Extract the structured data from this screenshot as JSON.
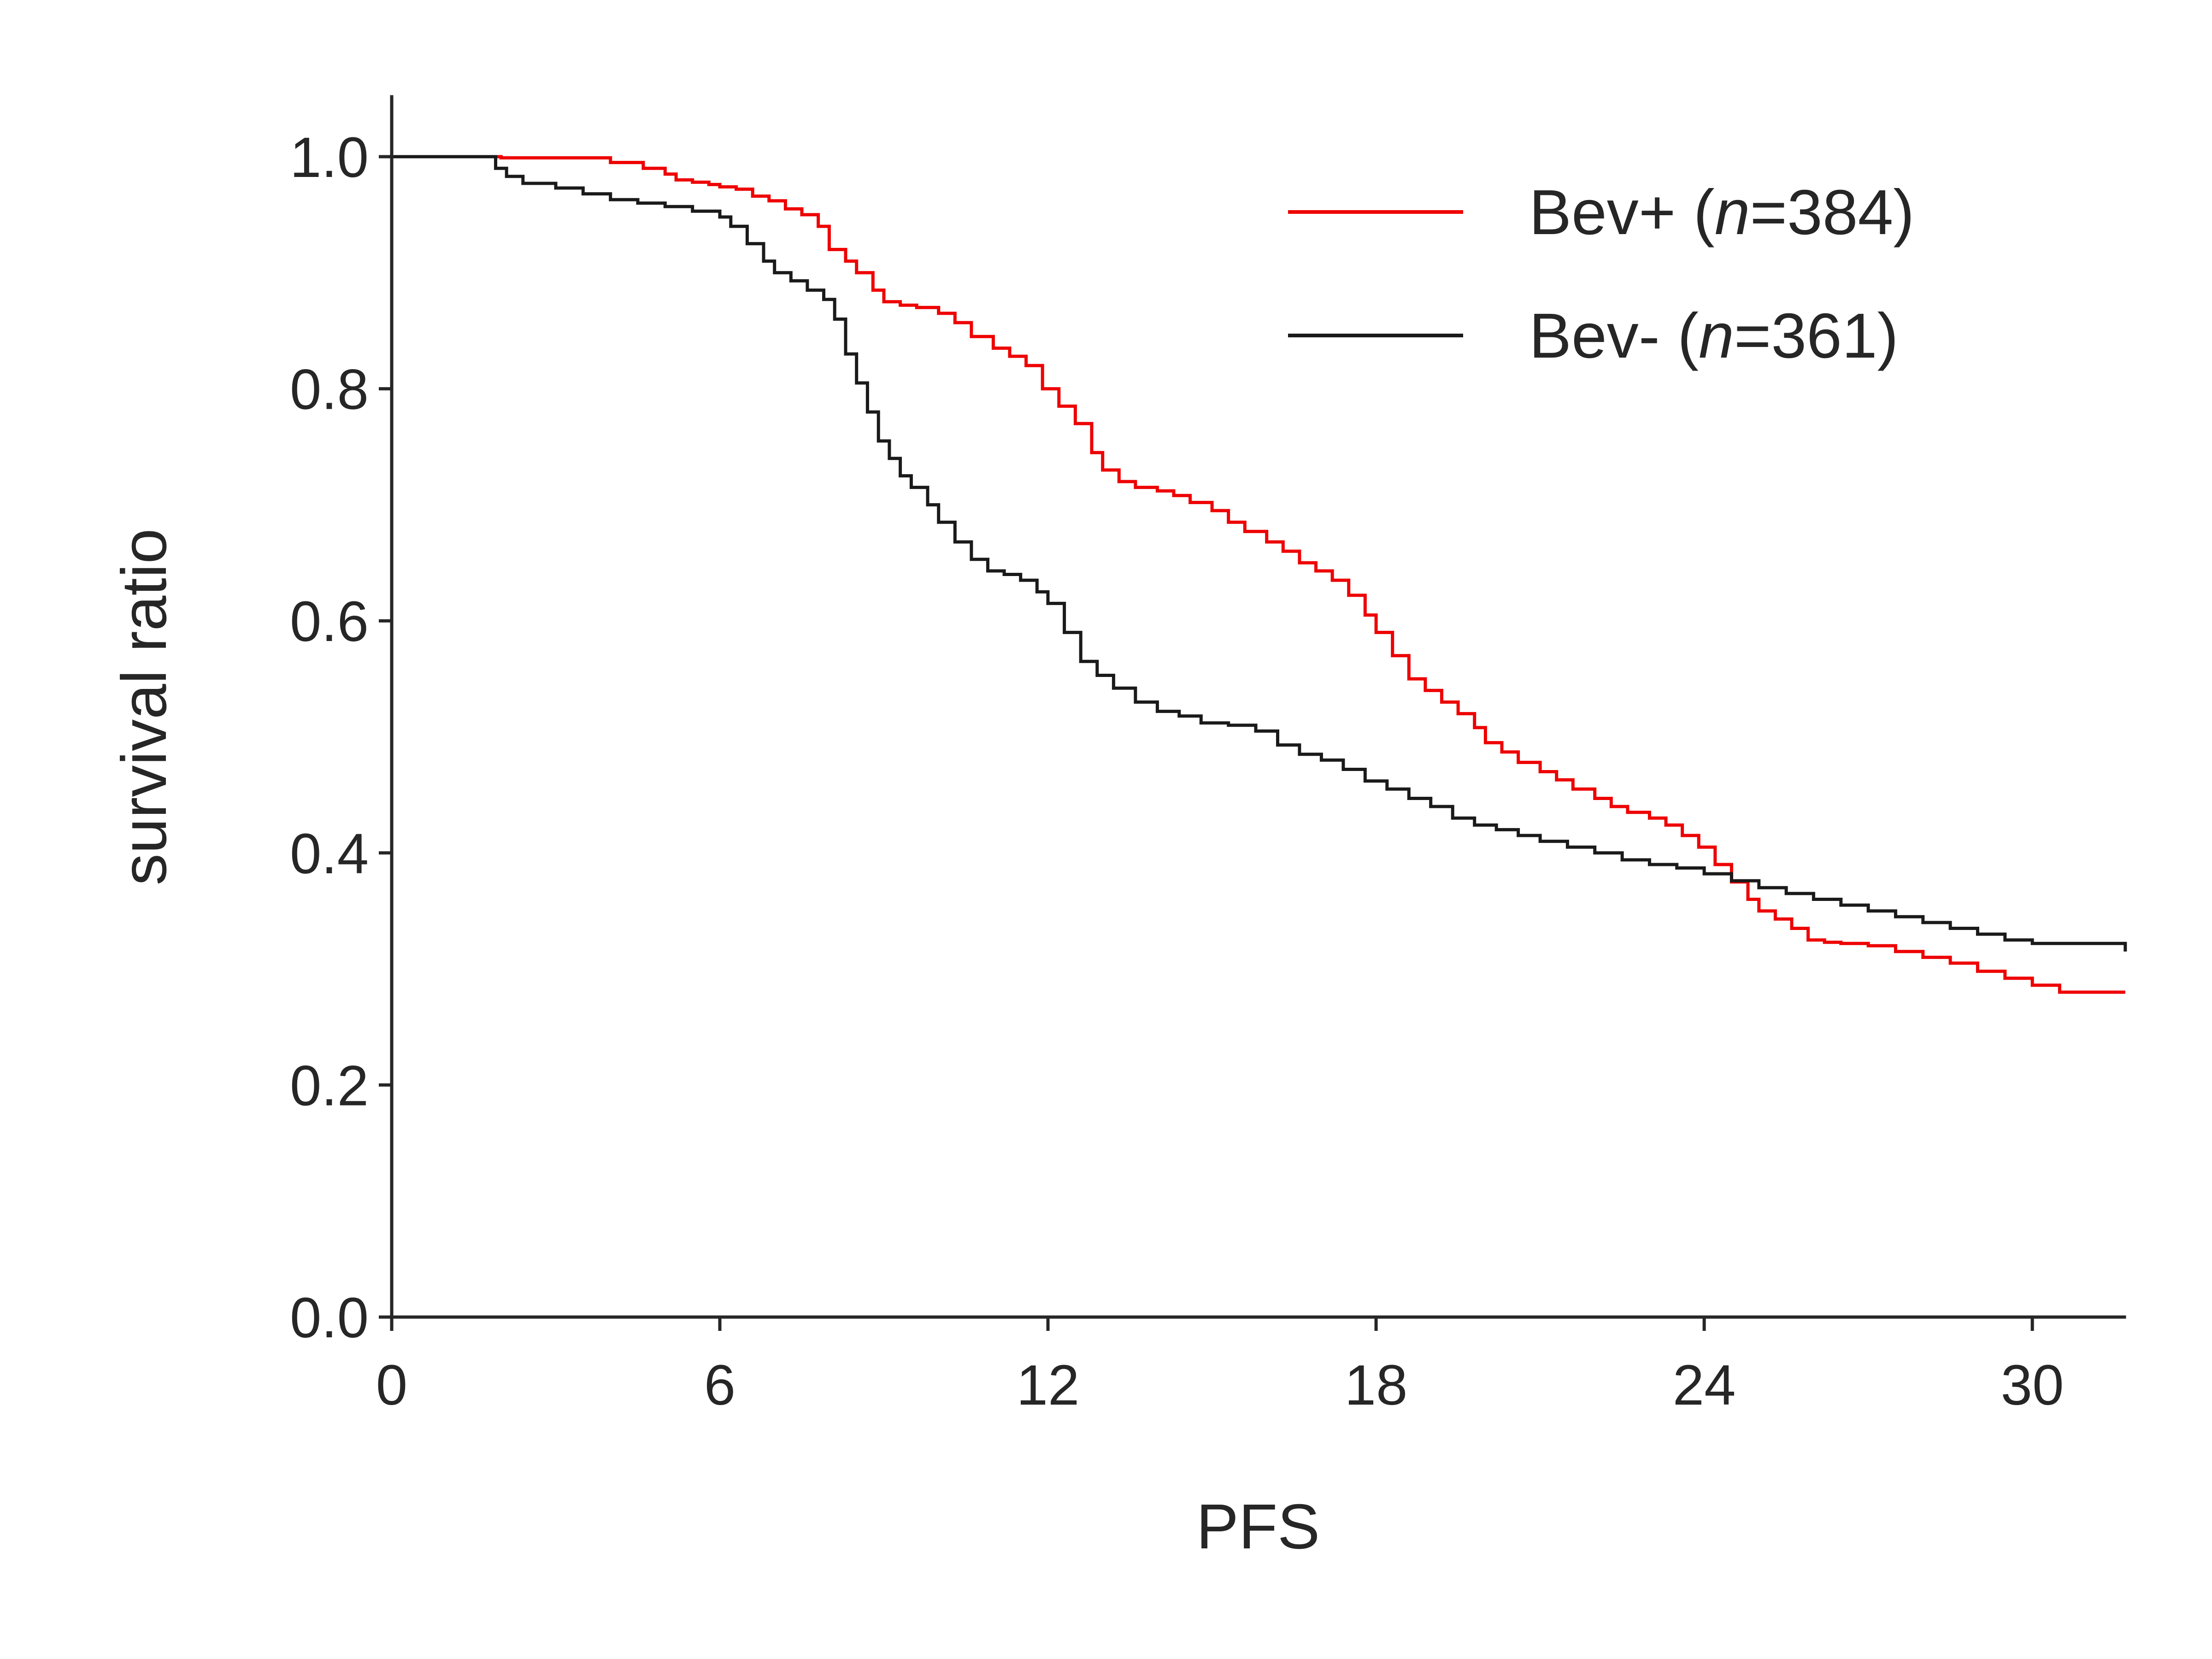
{
  "chart_data": {
    "type": "line",
    "subtype": "kaplan-meier-step",
    "title": "",
    "xlabel": "PFS",
    "ylabel": "survival ratio",
    "xlim": [
      0,
      31.7
    ],
    "ylim": [
      0,
      1.05
    ],
    "xticks": [
      0,
      6,
      12,
      18,
      24,
      30
    ],
    "xtick_labels": [
      "0",
      "6",
      "12",
      "18",
      "24",
      "30"
    ],
    "yticks": [
      0.0,
      0.2,
      0.4,
      0.6,
      0.8,
      1.0
    ],
    "ytick_labels": [
      "0.0",
      "0.2",
      "0.4",
      "0.6",
      "0.8",
      "1.0"
    ],
    "grid": false,
    "legend_position": "top-right",
    "series": [
      {
        "name": "Bev+ (n=384)",
        "legend_prefix": "Bev+ (",
        "legend_italic": "n",
        "legend_suffix": "=384)",
        "color": "#ee0000",
        "x": [
          0,
          2.0,
          4.0,
          4.6,
          5.0,
          5.2,
          5.5,
          5.8,
          6.0,
          6.3,
          6.6,
          6.9,
          7.2,
          7.5,
          7.8,
          8.0,
          8.3,
          8.5,
          8.8,
          9.0,
          9.3,
          9.6,
          10.0,
          10.3,
          10.6,
          11.0,
          11.3,
          11.6,
          11.9,
          12.2,
          12.5,
          12.8,
          13.0,
          13.3,
          13.6,
          14.0,
          14.3,
          14.6,
          15.0,
          15.3,
          15.6,
          16.0,
          16.3,
          16.6,
          16.9,
          17.2,
          17.5,
          17.8,
          18.0,
          18.3,
          18.6,
          18.9,
          19.2,
          19.5,
          19.8,
          20.0,
          20.3,
          20.6,
          21.0,
          21.3,
          21.6,
          22.0,
          22.3,
          22.6,
          23.0,
          23.3,
          23.6,
          23.9,
          24.2,
          24.5,
          24.8,
          25.0,
          25.3,
          25.6,
          25.9,
          26.2,
          26.5,
          27.0,
          27.5,
          28.0,
          28.5,
          29.0,
          29.5,
          30.0,
          30.5,
          31.7
        ],
        "y": [
          1.0,
          0.999,
          0.995,
          0.99,
          0.985,
          0.98,
          0.978,
          0.976,
          0.974,
          0.972,
          0.966,
          0.962,
          0.955,
          0.95,
          0.94,
          0.92,
          0.91,
          0.9,
          0.885,
          0.875,
          0.872,
          0.87,
          0.865,
          0.857,
          0.845,
          0.835,
          0.828,
          0.82,
          0.8,
          0.785,
          0.77,
          0.745,
          0.73,
          0.72,
          0.715,
          0.712,
          0.708,
          0.702,
          0.695,
          0.685,
          0.677,
          0.668,
          0.66,
          0.65,
          0.643,
          0.635,
          0.622,
          0.605,
          0.59,
          0.57,
          0.55,
          0.54,
          0.53,
          0.52,
          0.508,
          0.495,
          0.487,
          0.478,
          0.47,
          0.463,
          0.455,
          0.447,
          0.44,
          0.435,
          0.43,
          0.424,
          0.415,
          0.405,
          0.39,
          0.375,
          0.36,
          0.35,
          0.343,
          0.335,
          0.325,
          0.323,
          0.322,
          0.32,
          0.315,
          0.31,
          0.305,
          0.298,
          0.292,
          0.286,
          0.28,
          0.28
        ]
      },
      {
        "name": "Bev- (n=361)",
        "legend_prefix": "Bev- (",
        "legend_italic": "n",
        "legend_suffix": "=361)",
        "color": "#1a1a1a",
        "x": [
          0,
          1.9,
          2.1,
          2.4,
          3.0,
          3.5,
          4.0,
          4.5,
          5.0,
          5.5,
          6.0,
          6.2,
          6.5,
          6.8,
          7.0,
          7.3,
          7.6,
          7.9,
          8.1,
          8.3,
          8.5,
          8.7,
          8.9,
          9.1,
          9.3,
          9.5,
          9.8,
          10.0,
          10.3,
          10.6,
          10.9,
          11.2,
          11.5,
          11.8,
          12.0,
          12.3,
          12.6,
          12.9,
          13.2,
          13.6,
          14.0,
          14.4,
          14.8,
          15.3,
          15.8,
          16.2,
          16.6,
          17.0,
          17.4,
          17.8,
          18.2,
          18.6,
          19.0,
          19.4,
          19.8,
          20.2,
          20.6,
          21.0,
          21.5,
          22.0,
          22.5,
          23.0,
          23.5,
          24.0,
          24.5,
          25.0,
          25.5,
          26.0,
          26.5,
          27.0,
          27.5,
          28.0,
          28.5,
          29.0,
          29.5,
          30.0,
          31.7
        ],
        "y": [
          1.0,
          0.99,
          0.983,
          0.977,
          0.973,
          0.968,
          0.963,
          0.96,
          0.957,
          0.953,
          0.948,
          0.94,
          0.925,
          0.91,
          0.9,
          0.893,
          0.885,
          0.877,
          0.86,
          0.83,
          0.805,
          0.78,
          0.755,
          0.74,
          0.725,
          0.715,
          0.7,
          0.685,
          0.668,
          0.653,
          0.643,
          0.64,
          0.635,
          0.625,
          0.615,
          0.59,
          0.565,
          0.553,
          0.542,
          0.53,
          0.522,
          0.518,
          0.512,
          0.51,
          0.505,
          0.493,
          0.485,
          0.48,
          0.472,
          0.462,
          0.455,
          0.447,
          0.44,
          0.43,
          0.424,
          0.42,
          0.415,
          0.41,
          0.405,
          0.4,
          0.394,
          0.39,
          0.387,
          0.382,
          0.376,
          0.37,
          0.365,
          0.36,
          0.355,
          0.35,
          0.345,
          0.34,
          0.335,
          0.33,
          0.325,
          0.322,
          0.315
        ]
      }
    ]
  }
}
